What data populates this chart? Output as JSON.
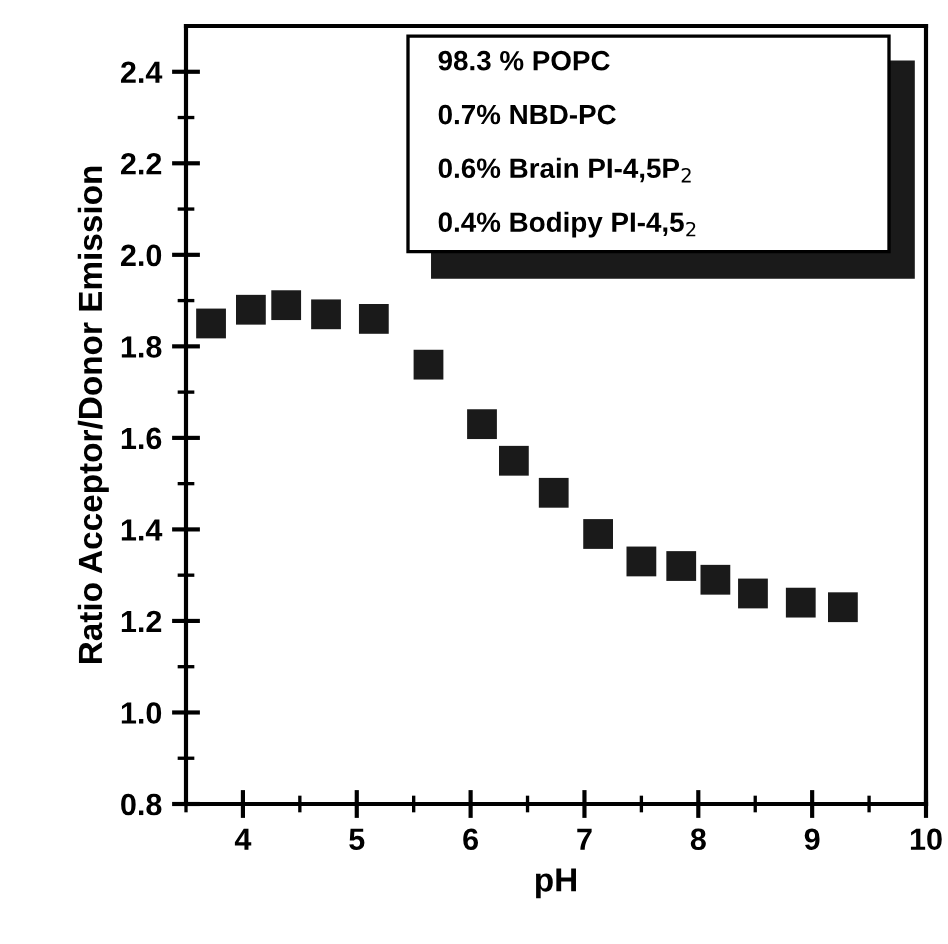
{
  "chart_data": {
    "type": "scatter",
    "xlabel": "pH",
    "ylabel": "Ratio Acceptor/Donor Emission",
    "x": [
      3.72,
      4.07,
      4.38,
      4.73,
      5.15,
      5.63,
      6.1,
      6.38,
      6.73,
      7.12,
      7.5,
      7.85,
      8.15,
      8.48,
      8.9,
      9.27
    ],
    "series": [
      {
        "color": "#1a1a1a",
        "values": [
          1.85,
          1.88,
          1.89,
          1.87,
          1.86,
          1.76,
          1.63,
          1.55,
          1.48,
          1.39,
          1.33,
          1.32,
          1.29,
          1.26,
          1.24,
          1.23
        ]
      }
    ],
    "xlim": [
      3.5,
      10
    ],
    "xticks": [
      4,
      5,
      6,
      7,
      8,
      9,
      10
    ],
    "ylim": [
      0.8,
      2.5
    ],
    "yticks": [
      0.8,
      {
        "value": 1,
        "label": "1.0"
      },
      1.2,
      1.4,
      1.6,
      1.8,
      {
        "value": 2,
        "label": "2.0"
      },
      2.2,
      2.4
    ],
    "marker": "square",
    "grid": false,
    "legend": false,
    "annotations": [
      "98.3 % POPC",
      "0.7% NBD-PC",
      "0.6% Brain PI-4,5P$_{2}$",
      "0.4% Bodipy PI-4,5$_{2}$"
    ]
  }
}
